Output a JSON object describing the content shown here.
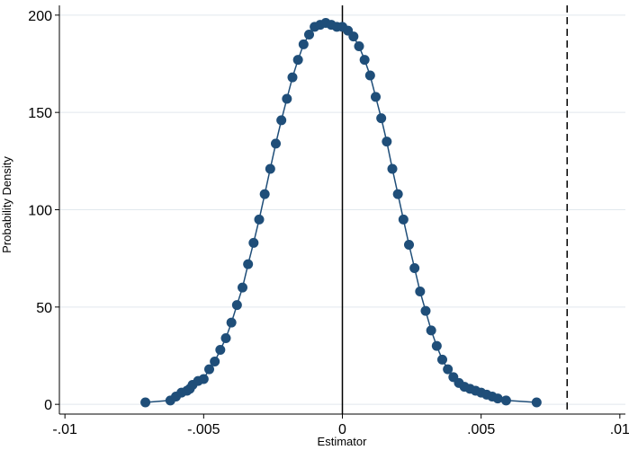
{
  "chart_data": {
    "type": "scatter",
    "title": "",
    "xlabel": "Estimator",
    "ylabel": "Probability Density",
    "xlim": [
      -0.0102,
      0.0102
    ],
    "ylim": [
      -5,
      205
    ],
    "x_ticks": [
      {
        "value": -0.01,
        "label": "-.01"
      },
      {
        "value": -0.005,
        "label": "-.005"
      },
      {
        "value": 0,
        "label": "0"
      },
      {
        "value": 0.005,
        "label": ".005"
      },
      {
        "value": 0.01,
        "label": ".01"
      }
    ],
    "y_ticks": [
      {
        "value": 0,
        "label": "0"
      },
      {
        "value": 50,
        "label": "50"
      },
      {
        "value": 100,
        "label": "100"
      },
      {
        "value": 150,
        "label": "150"
      },
      {
        "value": 200,
        "label": "200"
      }
    ],
    "grid": "horizontal",
    "reference_lines": [
      {
        "axis": "x",
        "value": 0,
        "style": "solid"
      },
      {
        "axis": "x",
        "value": 0.0081,
        "style": "dashed"
      }
    ],
    "series": [
      {
        "color": "#1f4e79",
        "x": [
          -0.0071,
          -0.0062,
          -0.006,
          -0.0058,
          -0.0056,
          -0.0055,
          -0.0054,
          -0.0052,
          -0.005,
          -0.0048,
          -0.0046,
          -0.0044,
          -0.0042,
          -0.004,
          -0.0038,
          -0.0036,
          -0.0034,
          -0.0032,
          -0.003,
          -0.0028,
          -0.0026,
          -0.0024,
          -0.0022,
          -0.002,
          -0.0018,
          -0.0016,
          -0.0014,
          -0.0012,
          -0.001,
          -0.0008,
          -0.0006,
          -0.0004,
          -0.0002,
          0,
          0.0002,
          0.0004,
          0.0006,
          0.0008,
          0.001,
          0.0012,
          0.0014,
          0.0016,
          0.0018,
          0.002,
          0.0022,
          0.0024,
          0.0026,
          0.0028,
          0.003,
          0.0032,
          0.0034,
          0.0036,
          0.0038,
          0.004,
          0.0042,
          0.0044,
          0.0046,
          0.0048,
          0.005,
          0.0052,
          0.0054,
          0.0056,
          0.0059,
          0.007
        ],
        "y": [
          1,
          2,
          4,
          6,
          7,
          8,
          10,
          12,
          13,
          18,
          22,
          28,
          34,
          42,
          51,
          60,
          72,
          83,
          95,
          108,
          121,
          134,
          146,
          157,
          168,
          177,
          185,
          190,
          194,
          195,
          196,
          195,
          194,
          194,
          192,
          189,
          184,
          177,
          169,
          158,
          147,
          135,
          121,
          108,
          95,
          82,
          70,
          58,
          48,
          38,
          30,
          23,
          18,
          14,
          11,
          9,
          8,
          7,
          6,
          5,
          4,
          3,
          2,
          1
        ]
      }
    ]
  }
}
